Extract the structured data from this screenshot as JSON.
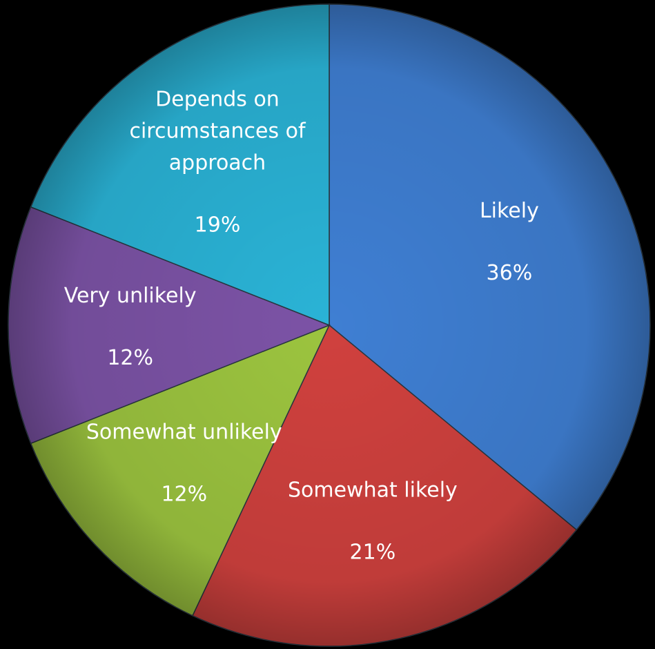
{
  "chart_data": {
    "type": "pie",
    "start_angle_deg": 0,
    "direction": "clockwise",
    "legend": "none",
    "slices": [
      {
        "label": "Likely",
        "label_lines": [
          "Likely"
        ],
        "value": 36,
        "display": "36%",
        "color": "#3f7fd3"
      },
      {
        "label": "Somewhat likely",
        "label_lines": [
          "Somewhat likely"
        ],
        "value": 21,
        "display": "21%",
        "color": "#d0413e"
      },
      {
        "label": "Somewhat unlikely",
        "label_lines": [
          "Somewhat unlikely"
        ],
        "value": 12,
        "display": "12%",
        "color": "#9cc43f"
      },
      {
        "label": "Very unlikely",
        "label_lines": [
          "Very unlikely"
        ],
        "value": 12,
        "display": "12%",
        "color": "#7c53a6"
      },
      {
        "label": "Depends on circumstances of approach",
        "label_lines": [
          "Depends on",
          "circumstances of",
          "approach"
        ],
        "value": 19,
        "display": "19%",
        "color": "#2ab3d6"
      }
    ]
  }
}
